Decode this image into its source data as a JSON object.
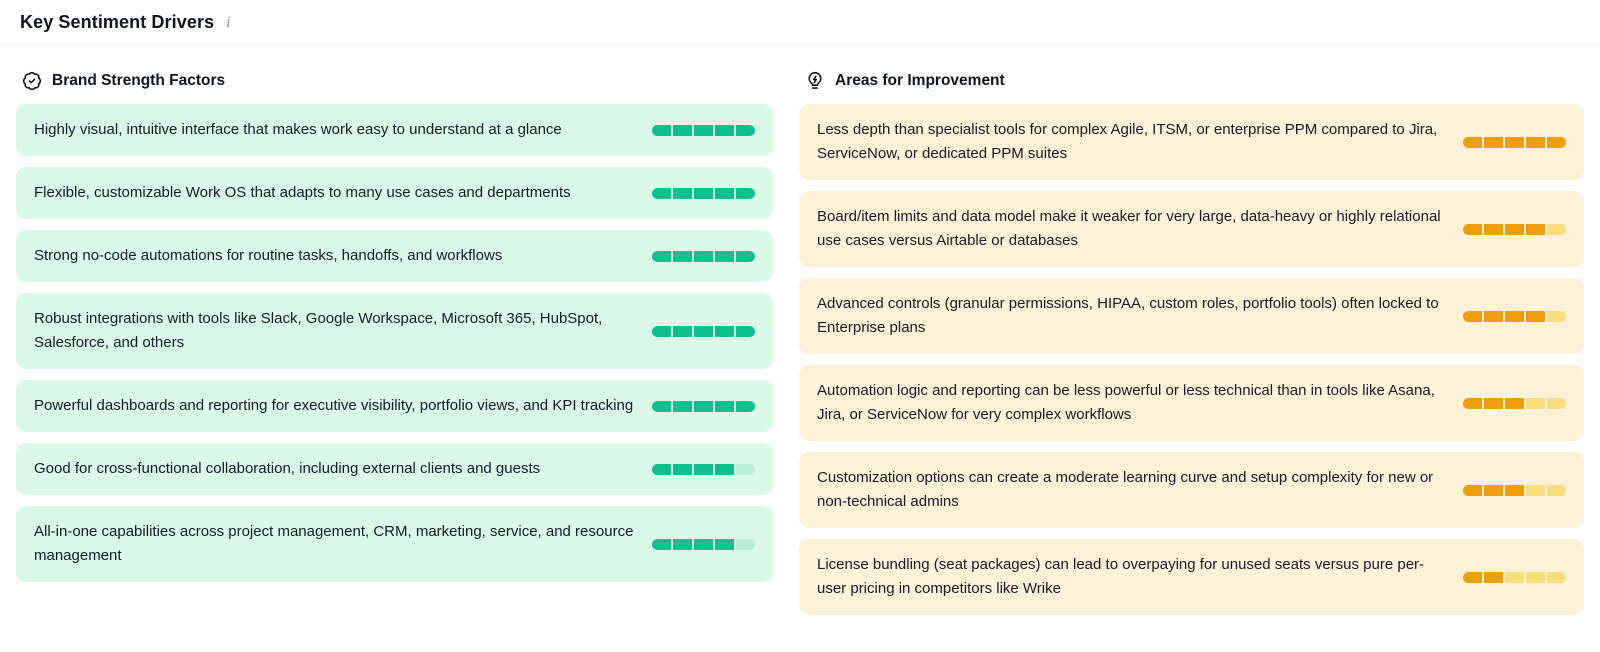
{
  "header": {
    "title": "Key Sentiment Drivers",
    "info_icon": "i"
  },
  "columns": {
    "strengths": {
      "title": "Brand Strength Factors",
      "icon": "shield-check-icon",
      "items": [
        {
          "text": "Highly visual, intuitive interface that makes work easy to understand at a glance",
          "score": 5,
          "max": 5
        },
        {
          "text": "Flexible, customizable Work OS that adapts to many use cases and departments",
          "score": 5,
          "max": 5
        },
        {
          "text": "Strong no-code automations for routine tasks, handoffs, and workflows",
          "score": 5,
          "max": 5
        },
        {
          "text": "Robust integrations with tools like Slack, Google Workspace, Microsoft 365, HubSpot, Salesforce, and others",
          "score": 5,
          "max": 5
        },
        {
          "text": "Powerful dashboards and reporting for executive visibility, portfolio views, and KPI tracking",
          "score": 5,
          "max": 5
        },
        {
          "text": "Good for cross-functional collaboration, including external clients and guests",
          "score": 4,
          "max": 5
        },
        {
          "text": "All-in-one capabilities across project management, CRM, marketing, service, and resource management",
          "score": 4,
          "max": 5
        }
      ]
    },
    "improvements": {
      "title": "Areas for Improvement",
      "icon": "lightbulb-bolt-icon",
      "items": [
        {
          "text": "Less depth than specialist tools for complex Agile, ITSM, or enterprise PPM compared to Jira, ServiceNow, or dedicated PPM suites",
          "score": 5,
          "max": 5
        },
        {
          "text": "Board/item limits and data model make it weaker for very large, data-heavy or highly relational use cases versus Airtable or databases",
          "score": 4,
          "max": 5
        },
        {
          "text": "Advanced controls (granular permissions, HIPAA, custom roles, portfolio tools) often locked to Enterprise plans",
          "score": 4,
          "max": 5
        },
        {
          "text": "Automation logic and reporting can be less powerful or less technical than in tools like Asana, Jira, or ServiceNow for very complex workflows",
          "score": 3,
          "max": 5
        },
        {
          "text": "Customization options can create a moderate learning curve and setup complexity for new or non-technical admins",
          "score": 3,
          "max": 5
        },
        {
          "text": "License bundling (seat packages) can lead to overpaying for unused seats versus pure per-user pricing in competitors like Wrike",
          "score": 2,
          "max": 5
        }
      ]
    }
  },
  "colors": {
    "green_fill": "#0fc08f",
    "green_empty": "#b9eed5",
    "green_card_bg": "#dbf9e7",
    "orange_fill": "#ee9d0d",
    "orange_empty": "#fbdc7d",
    "orange_card_bg": "#fdf2d5",
    "text": "#16192c"
  }
}
